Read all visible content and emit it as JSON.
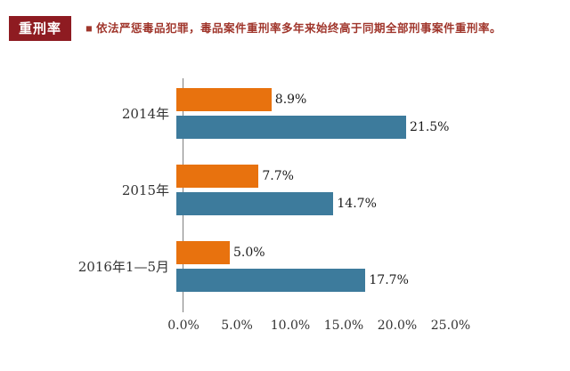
{
  "header": {
    "badge": "重刑率",
    "title": "■ 依法严惩毒品犯罪，毒品案件重刑率多年来始终高于同期全部刑事案件重刑率。",
    "badge_bg": "#8E1B21",
    "title_color": "#A0362C"
  },
  "chart_data": {
    "type": "bar",
    "orientation": "horizontal",
    "title": "",
    "categories": [
      "2014年",
      "2015年",
      "2016年1—5月"
    ],
    "series": [
      {
        "name": "orange-series",
        "color": "#E8720E",
        "values": [
          8.9,
          7.7,
          5.0
        ],
        "labels": [
          "8.9%",
          "7.7%",
          "5.0%"
        ]
      },
      {
        "name": "blue-series",
        "color": "#3D7B9C",
        "values": [
          21.5,
          14.7,
          17.7
        ],
        "labels": [
          "21.5%",
          "14.7%",
          "17.7%"
        ]
      }
    ],
    "x_ticks": [
      "0.0%",
      "5.0%",
      "10.0%",
      "15.0%",
      "20.0%",
      "25.0%"
    ],
    "xlim": [
      0,
      25
    ],
    "grid": false,
    "legend_position": "none"
  }
}
